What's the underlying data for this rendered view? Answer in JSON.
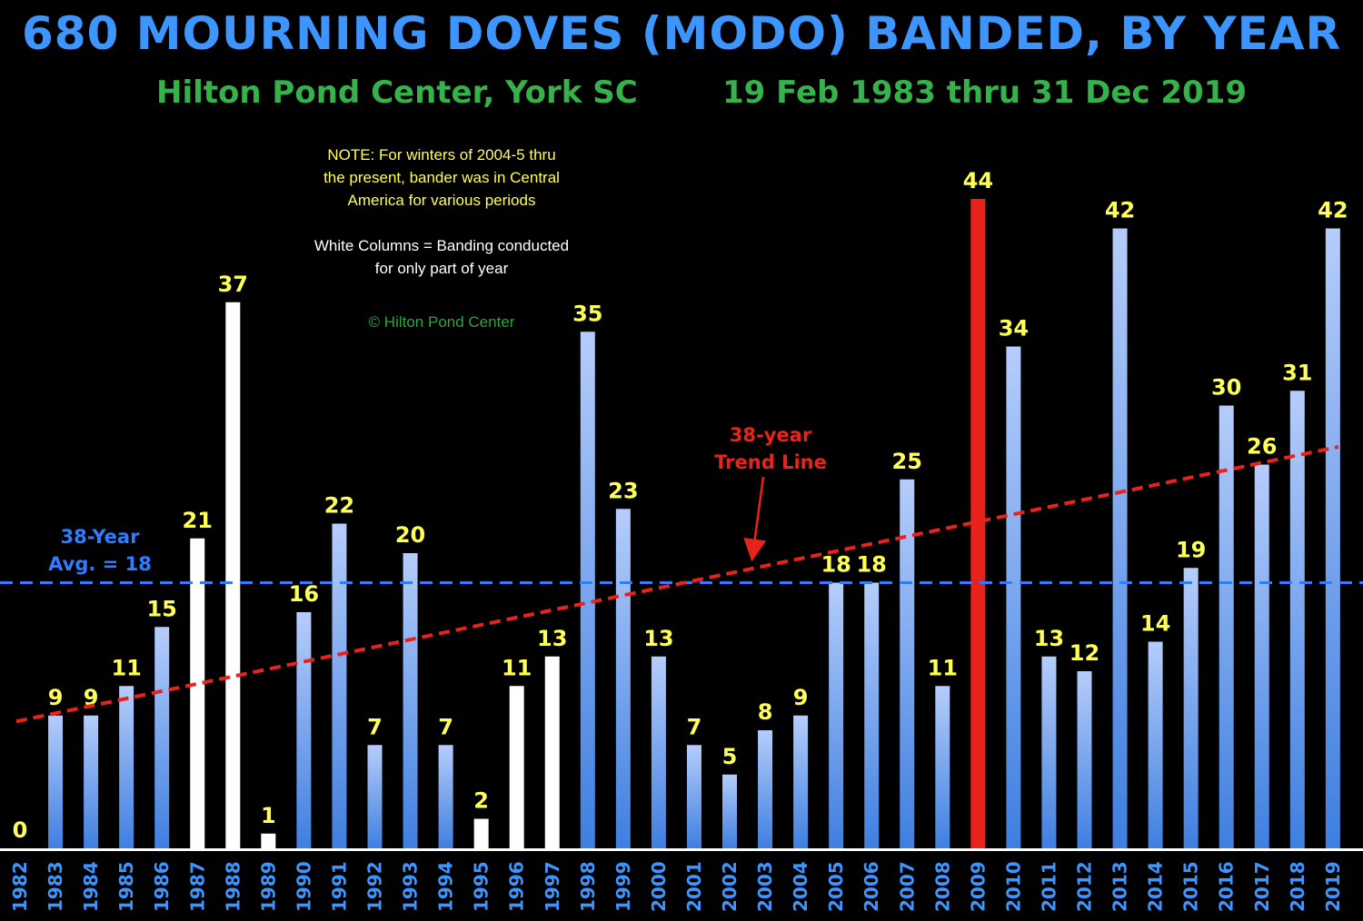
{
  "title": "680 MOURNING DOVES (MODO) BANDED, BY YEAR",
  "subtitle_left": "Hilton Pond Center, York SC",
  "subtitle_right": "19 Feb 1983 thru 31 Dec 2019",
  "notes": {
    "line1": "NOTE: For winters of 2004-5 thru",
    "line2": "the present, bander was in Central",
    "line3": "America for various periods",
    "white_line1": "White Columns = Banding conducted",
    "white_line2": "for only part of year",
    "copyright": "© Hilton Pond Center"
  },
  "annotations": {
    "avg_line1": "38-Year",
    "avg_line2": "Avg. = 18",
    "trend_line1": "38-year",
    "trend_line2": "Trend Line"
  },
  "colors": {
    "background": "#000000",
    "title": "#3d96ff",
    "subtitle": "#35b24a",
    "value_label": "#ffff55",
    "full_year_bar_top": "#b5cdfb",
    "full_year_bar_bottom": "#3f7fe0",
    "partial_year_bar": "#ffffff",
    "max_bar": "#e8231c",
    "average_line": "#2f7cff",
    "trend_line": "#e8231c"
  },
  "chart_data": {
    "type": "bar",
    "title": "680 MOURNING DOVES (MODO) BANDED, BY YEAR",
    "xlabel": "",
    "ylabel": "",
    "ylim": [
      0,
      44
    ],
    "grid": false,
    "legend": "none",
    "categories": [
      "1982",
      "1983",
      "1984",
      "1985",
      "1986",
      "1987",
      "1988",
      "1989",
      "1990",
      "1991",
      "1992",
      "1993",
      "1994",
      "1995",
      "1996",
      "1997",
      "1998",
      "1999",
      "2000",
      "2001",
      "2002",
      "2003",
      "2004",
      "2005",
      "2006",
      "2007",
      "2008",
      "2009",
      "2010",
      "2011",
      "2012",
      "2013",
      "2014",
      "2015",
      "2016",
      "2017",
      "2018",
      "2019"
    ],
    "values": [
      0,
      9,
      9,
      11,
      15,
      21,
      37,
      1,
      16,
      22,
      7,
      20,
      7,
      2,
      11,
      13,
      35,
      23,
      13,
      7,
      5,
      8,
      9,
      18,
      18,
      25,
      11,
      44,
      34,
      13,
      12,
      42,
      14,
      19,
      30,
      26,
      31,
      42
    ],
    "bar_kind": [
      "full",
      "full",
      "full",
      "full",
      "full",
      "partial",
      "partial",
      "partial",
      "full",
      "full",
      "full",
      "full",
      "full",
      "partial",
      "partial",
      "partial",
      "full",
      "full",
      "full",
      "full",
      "full",
      "full",
      "full",
      "full",
      "full",
      "full",
      "full",
      "max",
      "full",
      "full",
      "full",
      "full",
      "full",
      "full",
      "full",
      "full",
      "full",
      "full"
    ],
    "average": 18,
    "trend_line": {
      "start": [
        1982,
        8.6
      ],
      "end": [
        2019,
        27.2
      ]
    }
  }
}
